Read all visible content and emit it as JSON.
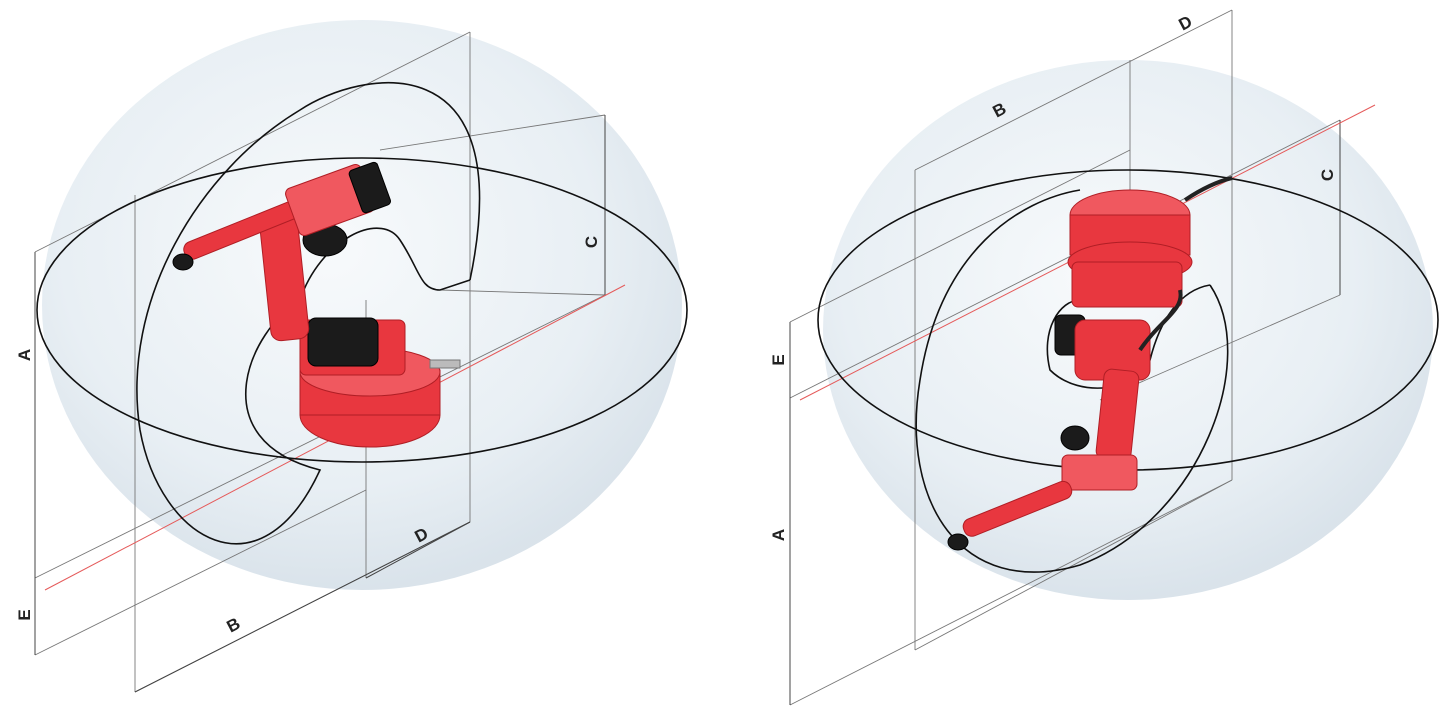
{
  "diagrams": [
    {
      "id": "left",
      "labels": {
        "a": "A",
        "b": "B",
        "c": "C",
        "d": "D",
        "e": "E"
      }
    },
    {
      "id": "right",
      "labels": {
        "a": "A",
        "b": "B",
        "c": "C",
        "d": "D",
        "e": "E"
      }
    }
  ],
  "colors": {
    "robot": "#e8373f",
    "sphere": "#dfe8ef",
    "axis": "#e55a5a",
    "envelope": "#111111"
  }
}
